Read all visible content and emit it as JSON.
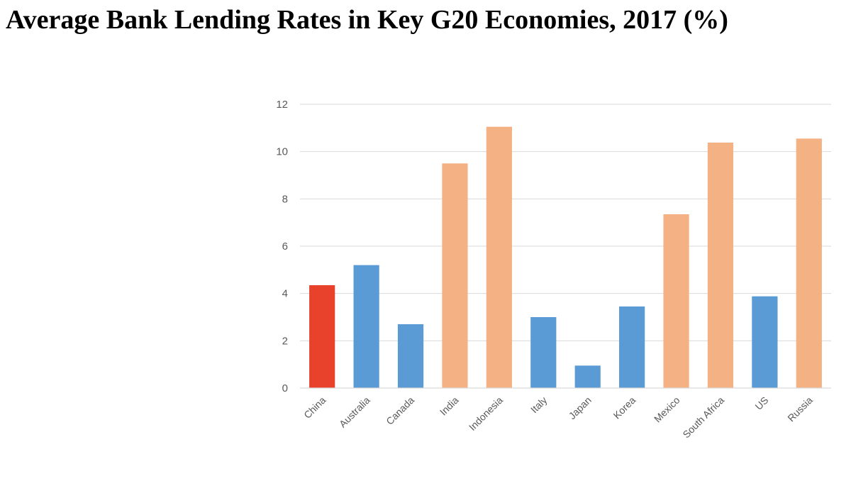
{
  "chart_data": {
    "type": "bar",
    "title": "Average Bank Lending Rates in Key G20 Economies, 2017 (%)",
    "xlabel": "",
    "ylabel": "",
    "ylim": [
      0,
      12
    ],
    "yticks": [
      0,
      2,
      4,
      6,
      8,
      10,
      12
    ],
    "grid": true,
    "legend": "none",
    "categories": [
      "China",
      "Australia",
      "Canada",
      "India",
      "Indonesia",
      "Italy",
      "Japan",
      "Korea",
      "Mexico",
      "South Africa",
      "US",
      "Russia"
    ],
    "values": [
      4.35,
      5.2,
      2.7,
      9.5,
      11.05,
      3.0,
      0.95,
      3.45,
      7.35,
      10.38,
      3.88,
      10.55
    ],
    "bar_colors": [
      "#e8412c",
      "#5b9bd5",
      "#5b9bd5",
      "#f4b183",
      "#f4b183",
      "#5b9bd5",
      "#5b9bd5",
      "#5b9bd5",
      "#f4b183",
      "#f4b183",
      "#5b9bd5",
      "#f4b183"
    ]
  }
}
